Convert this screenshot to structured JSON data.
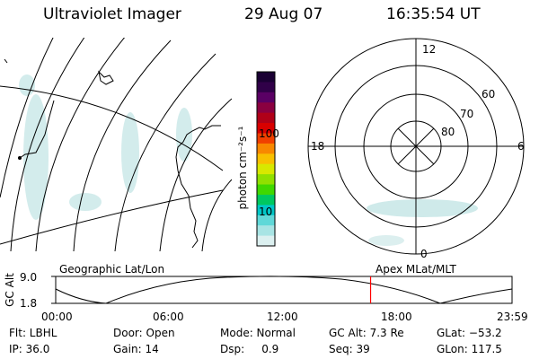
{
  "header": {
    "instrument": "Ultraviolet Imager",
    "date": "29 Aug 07",
    "time": "16:35:54 UT"
  },
  "colorbar": {
    "units_label": "photon cm⁻²s⁻¹",
    "tick_labels": [
      "100",
      "10"
    ],
    "colors": [
      "#1a0033",
      "#300048",
      "#5a0064",
      "#8a0040",
      "#b00018",
      "#d80000",
      "#f04000",
      "#f88800",
      "#f8c000",
      "#d8e800",
      "#90e000",
      "#40d800",
      "#00c860",
      "#00c8c8",
      "#60d8d8",
      "#a8e4e4",
      "#dcf0f0"
    ]
  },
  "polar_plot": {
    "lat_labels": [
      "60",
      "70",
      "80"
    ],
    "mlt_labels": {
      "top": "12",
      "left": "18",
      "right": "6",
      "bottom": "0"
    }
  },
  "timeline": {
    "ylabel": "GC Alt",
    "y_ticks": [
      "9.0",
      "1.8"
    ],
    "left_label": "Geographic Lat/Lon",
    "right_label": "Apex MLat/MLT",
    "x_ticks": [
      "00:00",
      "06:00",
      "12:00",
      "18:00",
      "23:59"
    ],
    "current_time_fraction": 0.69,
    "marker_color": "#ff0000"
  },
  "footer": {
    "row1": [
      {
        "label": "Flt: LBHL"
      },
      {
        "label": "Door: Open"
      },
      {
        "label": "Mode: Normal"
      },
      {
        "label": "GC Alt: 7.3 Re"
      },
      {
        "label": "GLat: −53.2"
      }
    ],
    "row2": [
      {
        "label": "IP: 36.0"
      },
      {
        "label": "Gain: 14"
      },
      {
        "label": "Dsp:     0.9"
      },
      {
        "label": "Seq: 39"
      },
      {
        "label": "GLon: 117.5"
      }
    ]
  }
}
